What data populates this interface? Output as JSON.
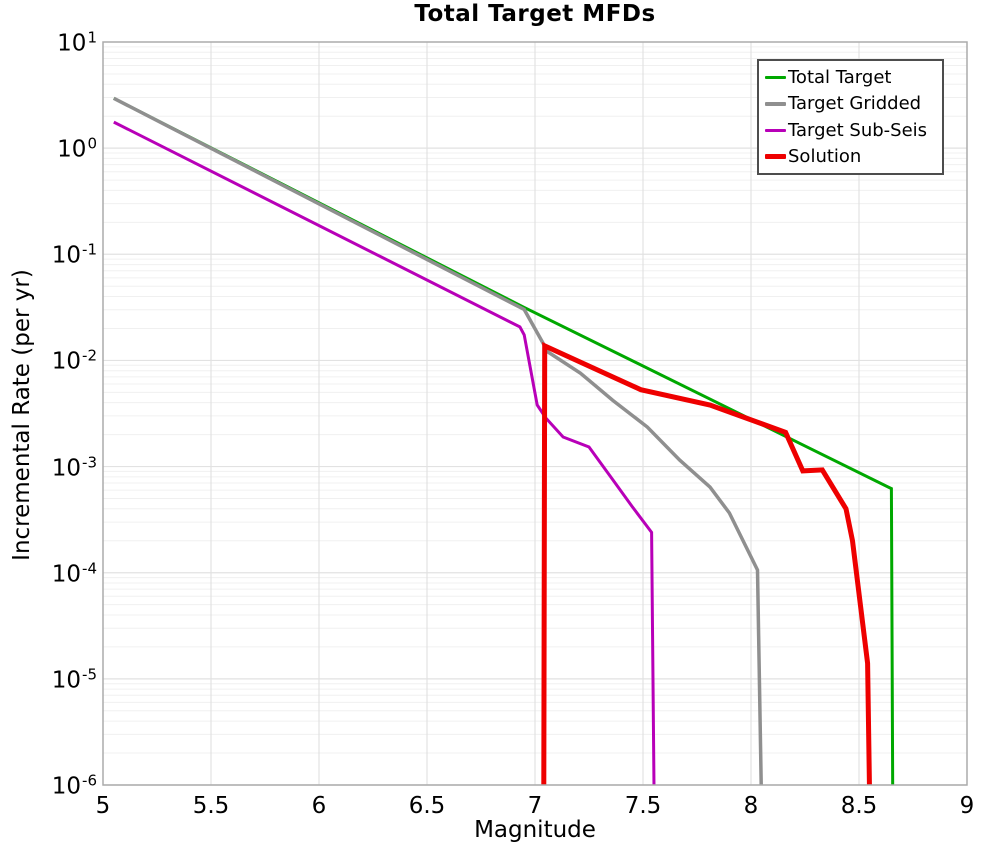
{
  "title": "Total Target MFDs",
  "axes": {
    "xlabel": "Magnitude",
    "ylabel": "Incremental Rate (per yr)",
    "x_tick_labels": [
      "5",
      "5.5",
      "6",
      "6.5",
      "7",
      "7.5",
      "8",
      "8.5",
      "9"
    ],
    "y_tick_base": "10",
    "y_tick_exponents": [
      "1",
      "0",
      "-1",
      "-2",
      "-3",
      "-4",
      "-5",
      "-6"
    ]
  },
  "colors": {
    "total_target": "#00A800",
    "target_gridded": "#8F8F8F",
    "target_sub_seis": "#B800B8",
    "solution": "#EE0000",
    "grid_major": "#e2e2e2",
    "grid_minor": "#f0f0f0",
    "spine": "#ababab",
    "legend_border": "#4d4d4d",
    "background": "#ffffff"
  },
  "legend": {
    "position": "upper right",
    "items": [
      "Total Target",
      "Target Gridded",
      "Target Sub-Seis",
      "Solution"
    ]
  },
  "chart_data": {
    "type": "line",
    "title": "Total Target MFDs",
    "xlabel": "Magnitude",
    "ylabel": "Incremental Rate (per yr)",
    "xlim": [
      5,
      9
    ],
    "ylim": [
      1e-06,
      10
    ],
    "yscale": "log",
    "grid": "log major+minor horizontal, 0.5-unit vertical, light gray",
    "legend_position": "upper right",
    "x_ticks": [
      5,
      5.5,
      6,
      6.5,
      7,
      7.5,
      8,
      8.5,
      9
    ],
    "y_ticks": [
      10,
      1,
      0.1,
      0.01,
      0.001,
      0.0001,
      1e-05,
      1e-06
    ],
    "series": [
      {
        "name": "Total Target",
        "color": "#00A800",
        "width": 3,
        "points": [
          [
            5.05,
            2.95
          ],
          [
            6.95,
            0.0316
          ],
          [
            8.65,
            0.00062
          ],
          [
            8.658,
            1.2e-07
          ]
        ]
      },
      {
        "name": "Target Gridded",
        "color": "#8F8F8F",
        "width": 3.5,
        "points": [
          [
            5.05,
            2.95
          ],
          [
            6.95,
            0.0302
          ],
          [
            7.06,
            0.012
          ],
          [
            7.21,
            0.0076
          ],
          [
            7.36,
            0.0042
          ],
          [
            7.52,
            0.00236
          ],
          [
            7.67,
            0.00115
          ],
          [
            7.81,
            0.00064
          ],
          [
            7.9,
            0.000365
          ],
          [
            8.03,
            0.000106
          ],
          [
            8.055,
            1.2e-07
          ]
        ]
      },
      {
        "name": "Target Sub-Seis",
        "color": "#B800B8",
        "width": 3,
        "points": [
          [
            5.05,
            1.76
          ],
          [
            6.93,
            0.0207
          ],
          [
            6.95,
            0.0174
          ],
          [
            7.01,
            0.0038
          ],
          [
            7.05,
            0.00287
          ],
          [
            7.13,
            0.0019
          ],
          [
            7.25,
            0.00153
          ],
          [
            7.36,
            0.00075
          ],
          [
            7.45,
            0.00042
          ],
          [
            7.54,
            0.00024
          ],
          [
            7.555,
            1.2e-07
          ]
        ]
      },
      {
        "name": "Solution",
        "color": "#EE0000",
        "width": 5,
        "points": [
          [
            7.04,
            1.2e-07
          ],
          [
            7.045,
            0.0137
          ],
          [
            7.49,
            0.0053
          ],
          [
            7.81,
            0.0038
          ],
          [
            8.16,
            0.0021
          ],
          [
            8.24,
            0.00091
          ],
          [
            8.33,
            0.00093
          ],
          [
            8.44,
            0.0004
          ],
          [
            8.47,
            0.0002
          ],
          [
            8.54,
            1.4e-05
          ],
          [
            8.555,
            1.2e-07
          ]
        ]
      }
    ]
  }
}
